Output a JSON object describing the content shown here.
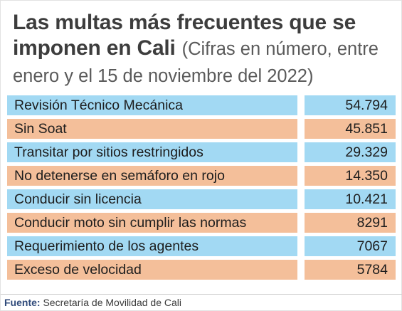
{
  "title": {
    "bold": "Las multas más frecuentes que se imponen en Cali",
    "light": "(Cifras en número, entre enero y el 15 de noviembre del 2022)"
  },
  "colors": {
    "row_blue": "#a2d9f3",
    "row_orange": "#f4bf9a",
    "title_text": "#3d3d3d",
    "source_label": "#2f4a7a"
  },
  "rows": [
    {
      "label": "Revisión Técnico Mecánica",
      "value": "54.794",
      "color": "blue"
    },
    {
      "label": "Sin Soat",
      "value": "45.851",
      "color": "orange"
    },
    {
      "label": "Transitar por sitios restringidos",
      "value": "29.329",
      "color": "blue"
    },
    {
      "label": "No detenerse en semáforo en rojo",
      "value": "14.350",
      "color": "orange"
    },
    {
      "label": "Conducir sin licencia",
      "value": "10.421",
      "color": "blue"
    },
    {
      "label": "Conducir moto sin cumplir las normas",
      "value": "8291",
      "color": "orange"
    },
    {
      "label": "Requerimiento de los agentes",
      "value": "7067",
      "color": "blue"
    },
    {
      "label": "Exceso de velocidad",
      "value": "5784",
      "color": "orange"
    }
  ],
  "source": {
    "label": "Fuente:",
    "value": "Secretaría de Movilidad de Cali"
  }
}
